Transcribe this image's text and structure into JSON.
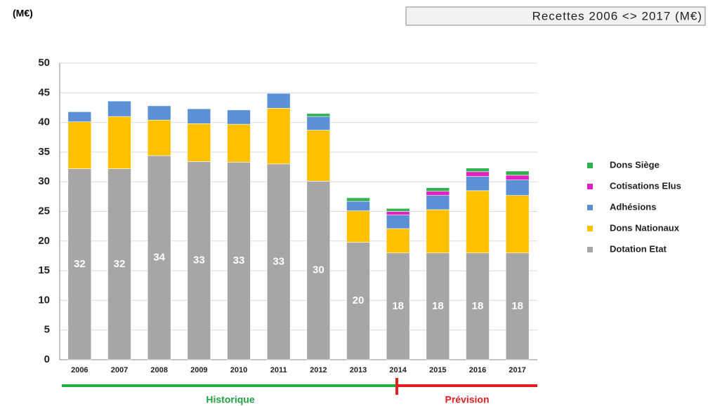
{
  "chart_data": {
    "type": "stacked_bar",
    "title": "Recettes 2006 <> 2017  (M€)",
    "unit_label": "(M€)",
    "annotations": [
      "Historique",
      "Prévision"
    ],
    "categories": [
      "2006",
      "2007",
      "2008",
      "2009",
      "2010",
      "2011",
      "2012",
      "2013",
      "2014",
      "2015",
      "2016",
      "2017"
    ],
    "series": [
      {
        "name": "Dotation Etat",
        "color": "#a6a6a6",
        "values": [
          32.2,
          32.2,
          34.4,
          33.4,
          33.3,
          33,
          30.1,
          19.8,
          18,
          18,
          18,
          18
        ],
        "value_labels": [
          "32",
          "32",
          "34",
          "33",
          "33",
          "33",
          "30",
          "20",
          "18",
          "18",
          "18",
          "18"
        ]
      },
      {
        "name": "Dons Nationaux",
        "color": "#ffc000",
        "values": [
          7.9,
          8.8,
          6,
          6.4,
          6.4,
          9.4,
          8.6,
          5.3,
          4.1,
          7.3,
          10.5,
          9.7
        ]
      },
      {
        "name": "Adhésions",
        "color": "#5b8fd6",
        "values": [
          1.7,
          2.6,
          2.4,
          2.5,
          2.4,
          2.5,
          2.3,
          1.6,
          2.3,
          2.4,
          2.4,
          2.6
        ]
      },
      {
        "name": "Cotisations Elus",
        "color": "#e020c0",
        "values": [
          0,
          0,
          0,
          0,
          0,
          0,
          0,
          0,
          0.6,
          0.7,
          0.8,
          0.8
        ]
      },
      {
        "name": "Dons Siège",
        "color": "#33b050",
        "values": [
          0,
          0,
          0,
          0,
          0,
          0,
          0.5,
          0.6,
          0.5,
          0.6,
          0.6,
          0.7
        ]
      }
    ],
    "ylim": [
      0,
      50
    ],
    "yticks": [
      0,
      5,
      10,
      15,
      20,
      25,
      30,
      35,
      40,
      45,
      50
    ],
    "grid": true,
    "legend": "right"
  }
}
